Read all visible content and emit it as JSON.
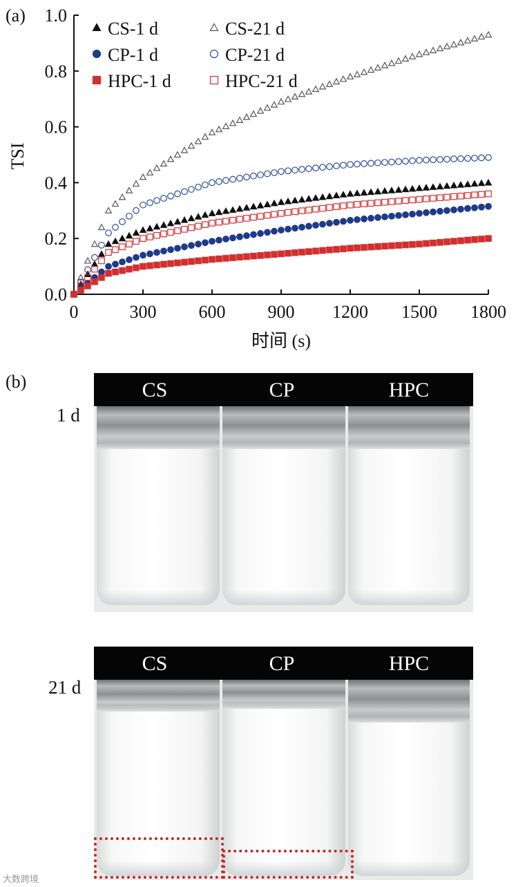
{
  "panel_labels": {
    "a": "(a)",
    "b": "(b)"
  },
  "chart_data": {
    "type": "scatter",
    "title": "",
    "xlabel": "时间 (s)",
    "ylabel": "TSI",
    "xlim": [
      0,
      1800
    ],
    "ylim": [
      0,
      1.0
    ],
    "xticks": [
      "0",
      "300",
      "600",
      "900",
      "1200",
      "1500",
      "1800"
    ],
    "yticks": [
      "0.0",
      "0.2",
      "0.4",
      "0.6",
      "0.8",
      "1.0"
    ],
    "x": [
      0,
      150,
      300,
      600,
      900,
      1200,
      1500,
      1800
    ],
    "series": [
      {
        "name": "CS-1 d",
        "marker": "triangle-filled",
        "color": "#111111",
        "values": [
          0,
          0.18,
          0.23,
          0.29,
          0.33,
          0.36,
          0.38,
          0.4
        ]
      },
      {
        "name": "CS-21 d",
        "marker": "triangle-open",
        "color": "#555555",
        "values": [
          0,
          0.3,
          0.42,
          0.58,
          0.69,
          0.78,
          0.86,
          0.93
        ]
      },
      {
        "name": "CP-1 d",
        "marker": "circle-filled",
        "color": "#1f3a8a",
        "values": [
          0,
          0.1,
          0.14,
          0.19,
          0.23,
          0.265,
          0.29,
          0.315
        ]
      },
      {
        "name": "CP-21 d",
        "marker": "circle-open",
        "color": "#2b4a9a",
        "values": [
          0,
          0.22,
          0.32,
          0.4,
          0.44,
          0.465,
          0.48,
          0.49
        ]
      },
      {
        "name": "HPC-1 d",
        "marker": "square-filled",
        "color": "#d32f2f",
        "values": [
          0,
          0.075,
          0.1,
          0.125,
          0.145,
          0.165,
          0.18,
          0.2
        ]
      },
      {
        "name": "HPC-21 d",
        "marker": "square-open",
        "color": "#d32f2f",
        "values": [
          0,
          0.15,
          0.2,
          0.255,
          0.29,
          0.32,
          0.34,
          0.36
        ]
      }
    ],
    "legend_position": "top-left"
  },
  "photos": {
    "day1": {
      "label": "1 d",
      "columns": [
        "CS",
        "CP",
        "HPC"
      ]
    },
    "day21": {
      "label": "21 d",
      "columns": [
        "CS",
        "CP",
        "HPC"
      ]
    }
  },
  "watermark": "大数跨境"
}
